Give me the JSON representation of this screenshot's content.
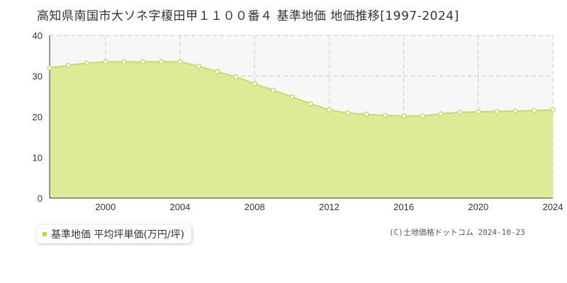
{
  "title": "高知県南国市大ソネ字榎田甲１１００番４ 基準地価 地価推移[1997-2024]",
  "legend": {
    "label": "基準地価 平均坪単価(万円/坪)",
    "color": "#b9d94a"
  },
  "copyright": "(C)土地価格ドットコム 2024-10-23",
  "colors": {
    "line": "#c2dc6a",
    "fill": "#dcec96",
    "marker_stroke": "#c2dc6a",
    "marker_fill": "#ffffff",
    "grid": "#cccccc",
    "band": "#f7f7f7"
  },
  "chart_data": {
    "type": "area",
    "x": [
      1997,
      1998,
      1999,
      2000,
      2001,
      2002,
      2003,
      2004,
      2005,
      2006,
      2007,
      2008,
      2009,
      2010,
      2011,
      2012,
      2013,
      2014,
      2015,
      2016,
      2017,
      2018,
      2019,
      2020,
      2021,
      2022,
      2023,
      2024
    ],
    "series": [
      {
        "name": "基準地価 平均坪単価(万円/坪)",
        "values": [
          32.0,
          32.6,
          33.2,
          33.5,
          33.5,
          33.5,
          33.5,
          33.5,
          32.4,
          31.1,
          29.8,
          28.1,
          26.5,
          24.9,
          23.2,
          21.7,
          20.9,
          20.6,
          20.3,
          20.2,
          20.2,
          20.7,
          21.1,
          21.2,
          21.3,
          21.4,
          21.5,
          21.7
        ]
      }
    ],
    "xticks": [
      "2000",
      "2004",
      "2008",
      "2012",
      "2016",
      "2020",
      "2024"
    ],
    "yticks": [
      "0",
      "10",
      "20",
      "30",
      "40"
    ],
    "xlim": [
      1997,
      2024
    ],
    "ylim": [
      0,
      40
    ],
    "grid": true,
    "legend_position": "bottom-left"
  }
}
